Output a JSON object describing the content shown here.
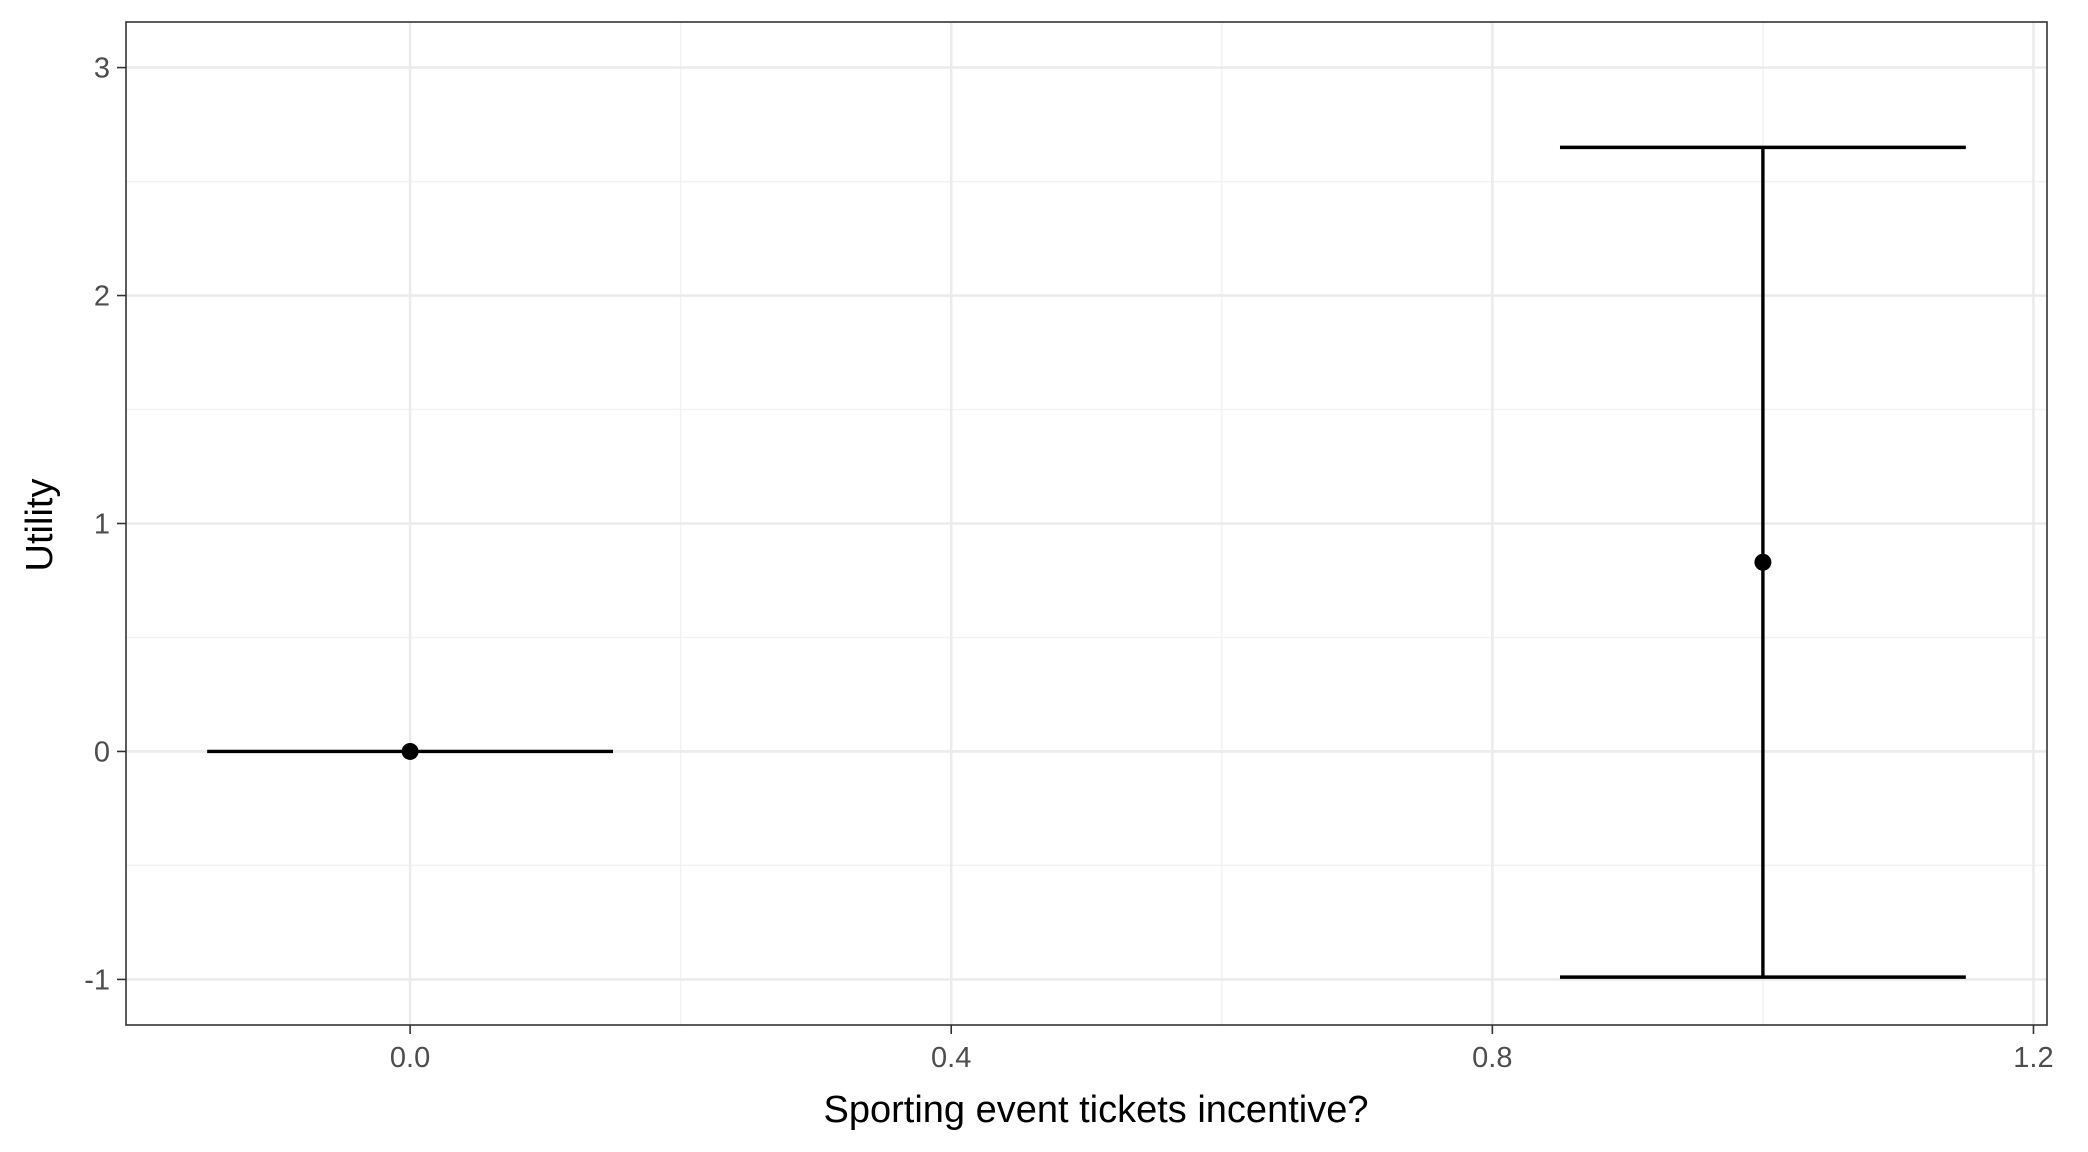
{
  "chart_data": {
    "type": "errorbar",
    "xlabel": "Sporting event tickets incentive?",
    "ylabel": "Utility",
    "xlim": [
      -0.21,
      1.21
    ],
    "ylim": [
      -1.2,
      3.2
    ],
    "x_ticks": [
      0.0,
      0.4,
      0.8,
      1.2
    ],
    "x_tick_labels": [
      "0.0",
      "0.4",
      "0.8",
      "1.2"
    ],
    "y_ticks": [
      -1,
      0,
      1,
      2,
      3
    ],
    "y_tick_labels": [
      "-1",
      "0",
      "1",
      "2",
      "3"
    ],
    "grid": true,
    "points": [
      {
        "x": 0,
        "y": 0,
        "ymin": 0,
        "ymax": 0
      },
      {
        "x": 1,
        "y": 0.83,
        "ymin": -0.99,
        "ymax": 2.65
      }
    ],
    "errorbar_halfwidth": 0.15,
    "colors": {
      "mark": "#000000",
      "grid_major": "#ebebeb",
      "grid_minor": "#f2f2f2",
      "panel_border": "#333333"
    }
  }
}
